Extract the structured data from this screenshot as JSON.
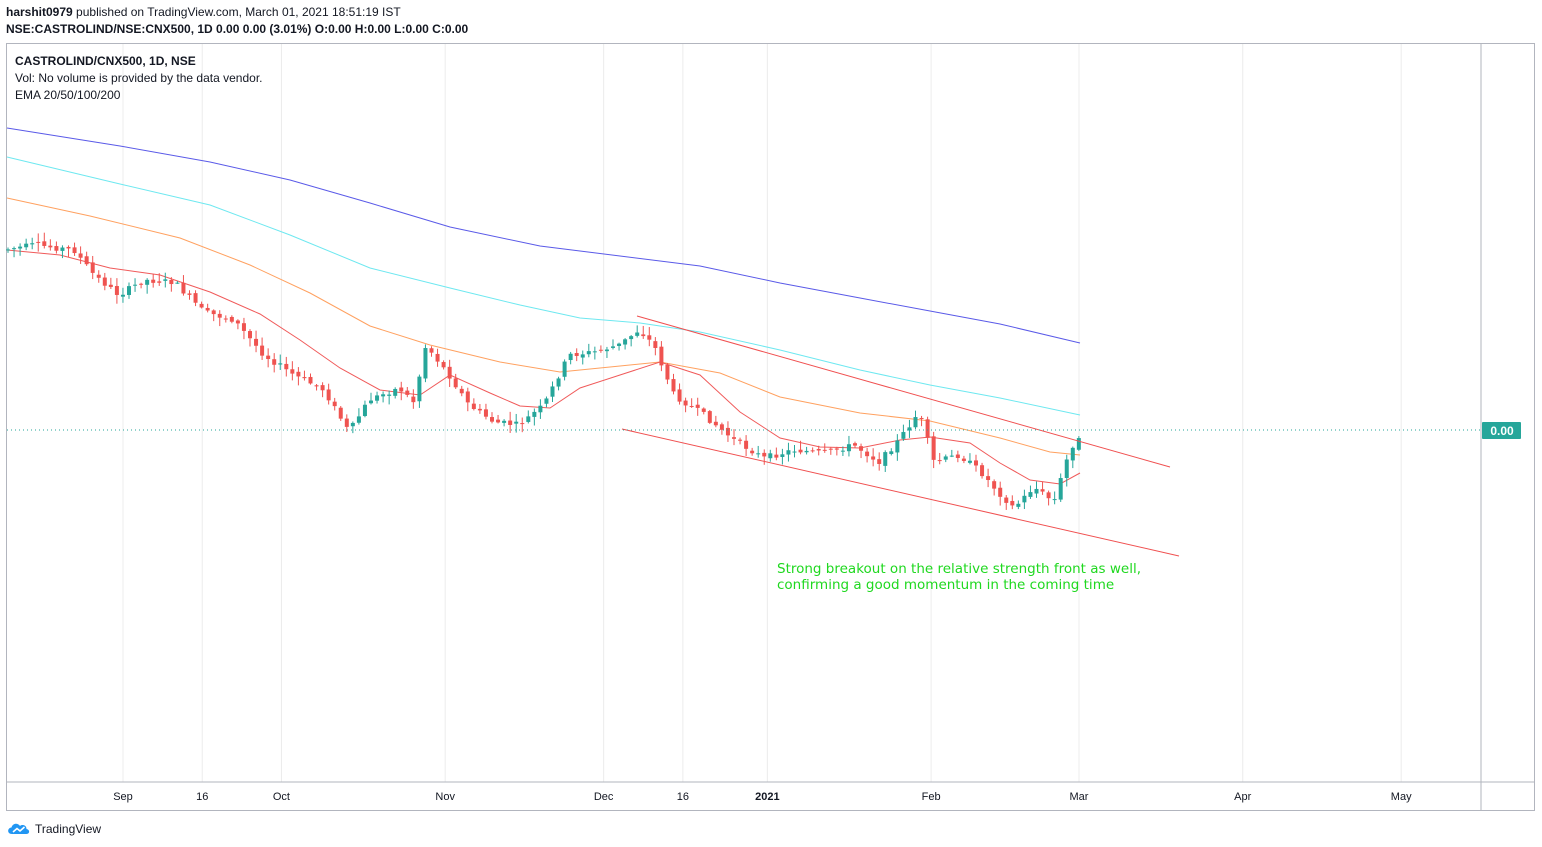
{
  "header": {
    "publisher": "harshit0979",
    "published_text": "published on TradingView.com, March 01, 2021 18:51:19 IST",
    "symbol_line": "NSE:CASTROLIND/NSE:CNX500, 1D  0.00 0.00 (3.01%) O:0.00 H:0.00 L:0.00 C:0.00"
  },
  "legend": {
    "title": "CASTROLIND/CNX500, 1D, NSE",
    "volume_note": "Vol: No volume is provided by the data vendor.",
    "indicator": "EMA 20/50/100/200"
  },
  "annotation": "Strong breakout on the relative strength front as well, confirming a good momentum in the coming time",
  "footer": {
    "brand": "TradingView"
  },
  "colors": {
    "up": "#26a69a",
    "down": "#ef5350",
    "ema20": "#f05a5a",
    "ema50": "#ffa160",
    "ema100": "#6ee8f0",
    "ema200": "#5a5ae8",
    "channel": "#f05050",
    "annotation": "#1fd81f",
    "price_label_bg": "#26a69a",
    "grid": "#ececec"
  },
  "chart_data": {
    "type": "candlestick",
    "date_range": [
      "2020-08-20",
      "2021-05-20"
    ],
    "x_ticks": [
      {
        "date": "2020-09-01",
        "label": "Sep"
      },
      {
        "date": "2020-09-16",
        "label": "16"
      },
      {
        "date": "2020-10-01",
        "label": "Oct"
      },
      {
        "date": "2020-11-01",
        "label": "Nov"
      },
      {
        "date": "2020-12-01",
        "label": "Dec"
      },
      {
        "date": "2020-12-16",
        "label": "16"
      },
      {
        "date": "2021-01-01",
        "label": "2021"
      },
      {
        "date": "2021-02-01",
        "label": "Feb"
      },
      {
        "date": "2021-03-01",
        "label": "Mar"
      },
      {
        "date": "2021-04-01",
        "label": "Apr"
      },
      {
        "date": "2021-05-01",
        "label": "May"
      }
    ],
    "price_label": "0.00",
    "last_price": 0.0
  }
}
